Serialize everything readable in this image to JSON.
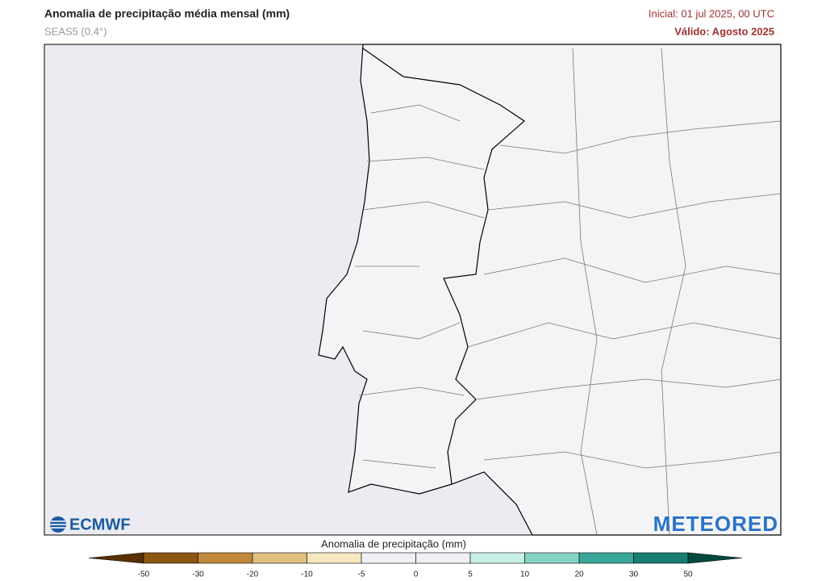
{
  "header": {
    "title": "Anomalia de precipitação média mensal (mm)",
    "subtitle": "SEAS5 (0.4°)",
    "initial": "Inicial: 01 jul 2025, 00 UTC",
    "valid": "Válido: Agosto 2025"
  },
  "logos": {
    "left": "ECMWF",
    "right": "METEORED"
  },
  "colorbar": {
    "label": "Anomalia de precipitação (mm)",
    "ticks": [
      -50,
      -30,
      -20,
      -10,
      -5,
      0,
      5,
      10,
      20,
      30,
      50
    ],
    "colors": [
      "#5a3000",
      "#8c5614",
      "#c0883a",
      "#dfc07c",
      "#f6e8c0",
      "#f0f0f5",
      "#f0f0f5",
      "#c8efe6",
      "#84d4c4",
      "#3aa898",
      "#177f70",
      "#004a3e"
    ]
  }
}
